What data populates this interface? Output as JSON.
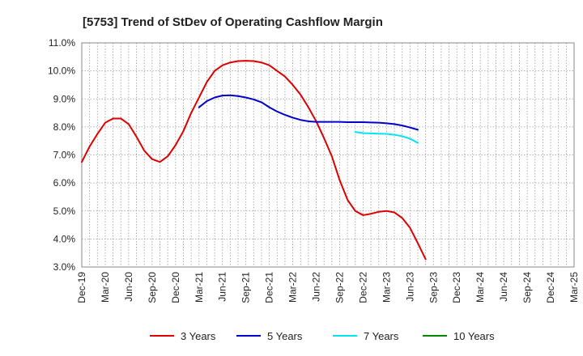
{
  "chart_data": {
    "type": "line",
    "title": "[5753]  Trend of StDev of Operating Cashflow Margin",
    "xlabel": "",
    "ylabel": "",
    "ylim": [
      3.0,
      11.0
    ],
    "y_ticks": [
      3.0,
      4.0,
      5.0,
      6.0,
      7.0,
      8.0,
      9.0,
      10.0,
      11.0
    ],
    "y_tick_labels": [
      "3.0%",
      "4.0%",
      "5.0%",
      "6.0%",
      "7.0%",
      "8.0%",
      "9.0%",
      "10.0%",
      "11.0%"
    ],
    "x_tick_labels": [
      "Dec-19",
      "Mar-20",
      "Jun-20",
      "Sep-20",
      "Dec-20",
      "Mar-21",
      "Jun-21",
      "Sep-21",
      "Dec-21",
      "Mar-22",
      "Jun-22",
      "Sep-22",
      "Dec-22",
      "Mar-23",
      "Jun-23",
      "Sep-23",
      "Dec-23",
      "Mar-24",
      "Jun-24",
      "Sep-24",
      "Dec-24",
      "Mar-25"
    ],
    "grid": true,
    "legend_position": "bottom",
    "series": [
      {
        "name": "3 Years",
        "color": "#dd0000",
        "points": [
          [
            0,
            6.75
          ],
          [
            1,
            7.3
          ],
          [
            2,
            7.75
          ],
          [
            3,
            8.15
          ],
          [
            4,
            8.3
          ],
          [
            5,
            8.3
          ],
          [
            6,
            8.1
          ],
          [
            7,
            7.65
          ],
          [
            8,
            7.15
          ],
          [
            9,
            6.85
          ],
          [
            10,
            6.75
          ],
          [
            11,
            6.95
          ],
          [
            12,
            7.35
          ],
          [
            13,
            7.85
          ],
          [
            14,
            8.5
          ],
          [
            15,
            9.05
          ],
          [
            16,
            9.6
          ],
          [
            17,
            10.0
          ],
          [
            18,
            10.2
          ],
          [
            19,
            10.3
          ],
          [
            20,
            10.35
          ],
          [
            21,
            10.36
          ],
          [
            22,
            10.35
          ],
          [
            23,
            10.3
          ],
          [
            24,
            10.2
          ],
          [
            25,
            10.0
          ],
          [
            26,
            9.8
          ],
          [
            27,
            9.5
          ],
          [
            28,
            9.15
          ],
          [
            29,
            8.7
          ],
          [
            30,
            8.2
          ],
          [
            31,
            7.6
          ],
          [
            32,
            6.95
          ],
          [
            33,
            6.1
          ],
          [
            34,
            5.4
          ],
          [
            35,
            5.0
          ],
          [
            36,
            4.85
          ],
          [
            37,
            4.9
          ],
          [
            38,
            4.97
          ],
          [
            39,
            5.0
          ],
          [
            40,
            4.95
          ],
          [
            41,
            4.75
          ],
          [
            42,
            4.4
          ],
          [
            43,
            3.85
          ],
          [
            44,
            3.28
          ]
        ]
      },
      {
        "name": "5 Years",
        "color": "#0000cc",
        "points": [
          [
            15,
            8.7
          ],
          [
            16,
            8.92
          ],
          [
            17,
            9.05
          ],
          [
            18,
            9.12
          ],
          [
            19,
            9.13
          ],
          [
            20,
            9.1
          ],
          [
            21,
            9.05
          ],
          [
            22,
            8.98
          ],
          [
            23,
            8.88
          ],
          [
            24,
            8.7
          ],
          [
            25,
            8.55
          ],
          [
            26,
            8.43
          ],
          [
            27,
            8.33
          ],
          [
            28,
            8.25
          ],
          [
            29,
            8.2
          ],
          [
            30,
            8.18
          ],
          [
            31,
            8.18
          ],
          [
            32,
            8.18
          ],
          [
            33,
            8.18
          ],
          [
            34,
            8.17
          ],
          [
            35,
            8.17
          ],
          [
            36,
            8.17
          ],
          [
            37,
            8.16
          ],
          [
            38,
            8.15
          ],
          [
            39,
            8.13
          ],
          [
            40,
            8.1
          ],
          [
            41,
            8.05
          ],
          [
            42,
            7.98
          ],
          [
            43,
            7.9
          ]
        ]
      },
      {
        "name": "7 Years",
        "color": "#00e5ee",
        "points": [
          [
            35,
            7.82
          ],
          [
            36,
            7.78
          ],
          [
            37,
            7.77
          ],
          [
            38,
            7.76
          ],
          [
            39,
            7.75
          ],
          [
            40,
            7.72
          ],
          [
            41,
            7.67
          ],
          [
            42,
            7.58
          ],
          [
            43,
            7.43
          ]
        ]
      },
      {
        "name": "10 Years",
        "color": "#008800",
        "points": []
      }
    ]
  }
}
